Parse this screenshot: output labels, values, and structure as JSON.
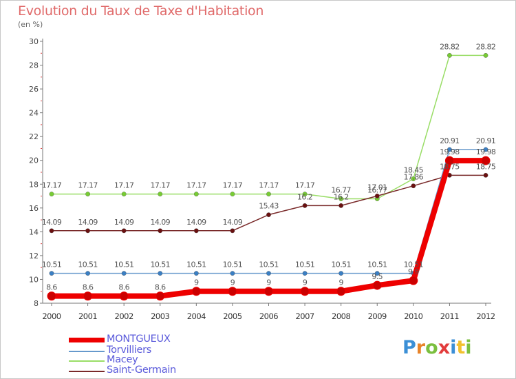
{
  "title": "Evolution du Taux de Taxe d'Habitation",
  "unit_label": "(en %)",
  "logo": {
    "text": "Proxiti",
    "letter_colors": [
      "#3b8fd6",
      "#e8842a",
      "#7bbf3f",
      "#e23c3c",
      "#3b8fd6",
      "#f2c12e",
      "#7bbf3f"
    ]
  },
  "chart_data": {
    "type": "line",
    "title": "Evolution du Taux de Taxe d'Habitation",
    "ylabel": "(en %)",
    "xlabel": "",
    "x": [
      "2000",
      "2001",
      "2002",
      "2003",
      "2004",
      "2005",
      "2006",
      "2007",
      "2008",
      "2009",
      "2010",
      "2011",
      "2012"
    ],
    "ylim": [
      8,
      30
    ],
    "yticks": [
      8,
      10,
      12,
      14,
      16,
      18,
      20,
      22,
      24,
      26,
      28,
      30
    ],
    "grid": false,
    "legend_position": "bottom-left",
    "series": [
      {
        "name": "MONTGUEUX",
        "color": "#ee0000",
        "marker_color": "#cc0000",
        "width": 8,
        "values": [
          8.6,
          8.6,
          8.6,
          8.6,
          9,
          9,
          9,
          9,
          9,
          9.5,
          9.9,
          19.98,
          19.98
        ],
        "labels": [
          "8.6",
          "8.6",
          "8.6",
          "8.6",
          "9",
          "9",
          "9",
          "9",
          "9",
          "9.5",
          "9.9",
          "19.98",
          "19.98"
        ]
      },
      {
        "name": "Torvilliers",
        "color": "#6699cc",
        "marker_color": "#3a7fc4",
        "width": 1.5,
        "values": [
          10.51,
          10.51,
          10.51,
          10.51,
          10.51,
          10.51,
          10.51,
          10.51,
          10.51,
          10.51,
          10.51,
          20.91,
          20.91
        ],
        "labels": [
          "10.51",
          "10.51",
          "10.51",
          "10.51",
          "10.51",
          "10.51",
          "10.51",
          "10.51",
          "10.51",
          "10.51",
          "10.51",
          "20.91",
          "20.91"
        ]
      },
      {
        "name": "Macey",
        "color": "#99dd66",
        "marker_color": "#77cc33",
        "width": 1.5,
        "values": [
          17.17,
          17.17,
          17.17,
          17.17,
          17.17,
          17.17,
          17.17,
          17.17,
          16.77,
          16.77,
          18.45,
          28.82,
          28.82
        ],
        "labels": [
          "17.17",
          "17.17",
          "17.17",
          "17.17",
          "17.17",
          "17.17",
          "17.17",
          "17.17",
          "16.77",
          "16.77",
          "18.45",
          "28.82",
          "28.82"
        ]
      },
      {
        "name": "Saint-Germain",
        "color": "#7a2a2a",
        "marker_color": "#6a1010",
        "width": 1.5,
        "values": [
          14.09,
          14.09,
          14.09,
          14.09,
          14.09,
          14.09,
          15.43,
          16.2,
          16.2,
          17.01,
          17.86,
          18.75,
          18.75
        ],
        "labels": [
          "14.09",
          "14.09",
          "14.09",
          "14.09",
          "14.09",
          "14.09",
          "15.43",
          "16.2",
          "16.2",
          "17.01",
          "17.86",
          "18.75",
          "18.75"
        ]
      }
    ]
  }
}
